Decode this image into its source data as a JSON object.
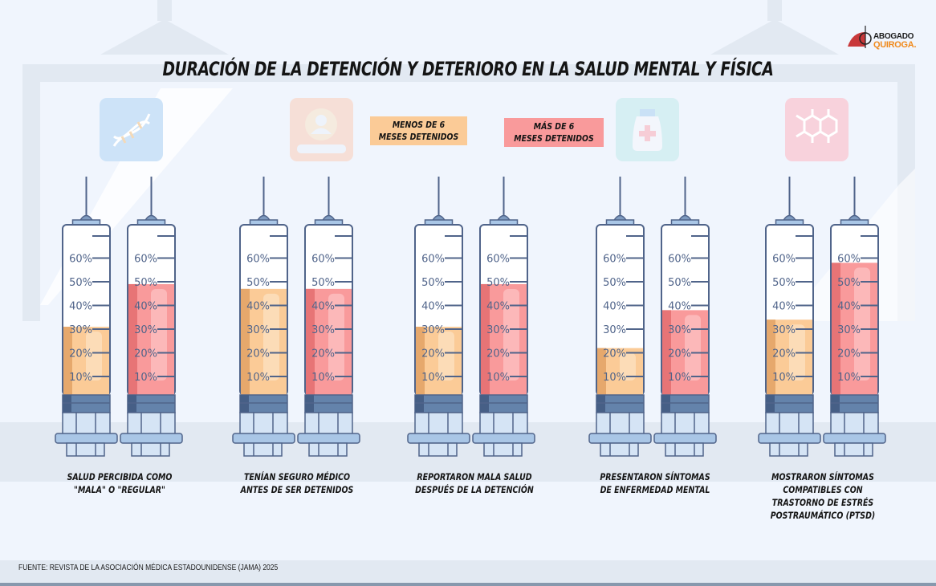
{
  "title": "DURACIÓN DE LA DETENCIÓN Y DETERIORO EN LA SALUD MENTAL Y FÍSICA",
  "logo": {
    "line1": "ABOGADO",
    "line2": "QUIROGA."
  },
  "legend": [
    {
      "line1": "MENOS DE 6",
      "line2": "MESES DETENIDOS",
      "color": "#fbcb97"
    },
    {
      "line1": "MÁS DE 6",
      "line2": "MESES DETENIDOS",
      "color": "#f99a9b"
    }
  ],
  "icons": [
    "dna-icon",
    "id-card-icon",
    "medicine-bottle-icon",
    "molecule-icon"
  ],
  "footer": "FUENTE: REVISTA DE LA ASOCIACIÓN MÉDICA ESTADOUNIDENSE (JAMA) 2025",
  "chart_data": {
    "type": "bar",
    "title": "DURACIÓN DE LA DETENCIÓN Y DETERIORO EN LA SALUD MENTAL Y FÍSICA",
    "xlabel": "",
    "ylabel": "",
    "ylim": [
      0,
      60
    ],
    "yticks": [
      "10%",
      "20%",
      "30%",
      "40%",
      "50%",
      "60%"
    ],
    "categories": [
      [
        "SALUD PERCIBIDA COMO",
        "\"MALA\" O \"REGULAR\""
      ],
      [
        "TENÍAN SEGURO MÉDICO",
        "ANTES DE SER DETENIDOS"
      ],
      [
        "REPORTARON MALA SALUD",
        "DESPUÉS DE LA DETENCIÓN"
      ],
      [
        "PRESENTARON SÍNTOMAS",
        "DE ENFERMEDAD MENTAL"
      ],
      [
        "MOSTRARON SÍNTOMAS",
        "COMPATIBLES CON",
        "TRASTORNO DE ESTRÉS",
        "POSTRAUMÁTICO (PTSD)"
      ]
    ],
    "series": [
      {
        "name": "MENOS DE 6 MESES DETENIDOS",
        "color": "#fbcb97",
        "values": [
          31,
          47,
          31,
          22,
          34
        ]
      },
      {
        "name": "MÁS DE 6 MESES DETENIDOS",
        "color": "#f99a9b",
        "values": [
          49,
          47,
          49,
          38,
          58
        ]
      }
    ],
    "legend_position": "top-center",
    "grid": false
  }
}
